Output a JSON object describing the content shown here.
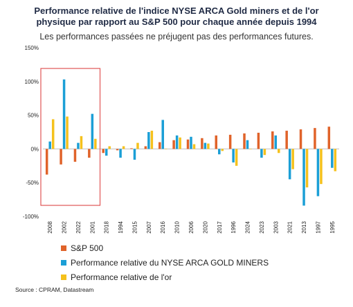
{
  "title_line1": "Performance relative de l'indice NYSE ARCA Gold miners et de l'or",
  "title_line2": "physique par rapport au S&P 500 pour chaque année depuis 1994",
  "subtitle": "Les performances passées ne préjugent pas des performances futures.",
  "source": "Source : CPRAM, Datastream",
  "colors": {
    "sp500": "#e0632a",
    "gold_miners": "#1b9fd6",
    "gold": "#f5c11c",
    "highlight": "#e05555",
    "axis": "#bfbfbf"
  },
  "chart_data": {
    "type": "bar",
    "title": "Performance relative de l'indice NYSE ARCA Gold miners et de l'or physique par rapport au S&P 500 pour chaque année depuis 1994",
    "ylim": [
      -100,
      150
    ],
    "yticks": [
      -100,
      -50,
      0,
      50,
      100,
      150
    ],
    "ytick_labels": [
      "-100%",
      "-50%",
      "0%",
      "50%",
      "100%",
      "150%"
    ],
    "highlight_range": [
      "2008",
      "2001"
    ],
    "categories": [
      "2008",
      "2002",
      "2022",
      "2001",
      "2018",
      "1994",
      "2015",
      "2007",
      "2016",
      "2010",
      "2006",
      "2020",
      "2017",
      "1996",
      "2024",
      "2023",
      "2003",
      "2021",
      "2013",
      "1997",
      "1995"
    ],
    "series": [
      {
        "name": "S&P 500",
        "color": "#e0632a",
        "values": [
          -38,
          -23,
          -19,
          -13,
          -6,
          -2,
          1,
          4,
          10,
          13,
          14,
          16,
          20,
          21,
          23,
          24,
          26,
          27,
          29,
          31,
          33
        ]
      },
      {
        "name": "Performance relative du NYSE ARCA GOLD MINERS",
        "color": "#1b9fd6",
        "values": [
          11,
          103,
          9,
          52,
          -10,
          -13,
          -16,
          25,
          43,
          20,
          18,
          9,
          -8,
          -20,
          13,
          -13,
          20,
          -45,
          -84,
          -70,
          -28
        ]
      },
      {
        "name": "Performance relative de l'or",
        "color": "#f5c11c",
        "values": [
          44,
          48,
          19,
          15,
          4,
          4,
          9,
          27,
          0,
          17,
          7,
          8,
          -3,
          -25,
          0,
          -9,
          -6,
          -30,
          -57,
          -52,
          -33
        ]
      }
    ]
  }
}
